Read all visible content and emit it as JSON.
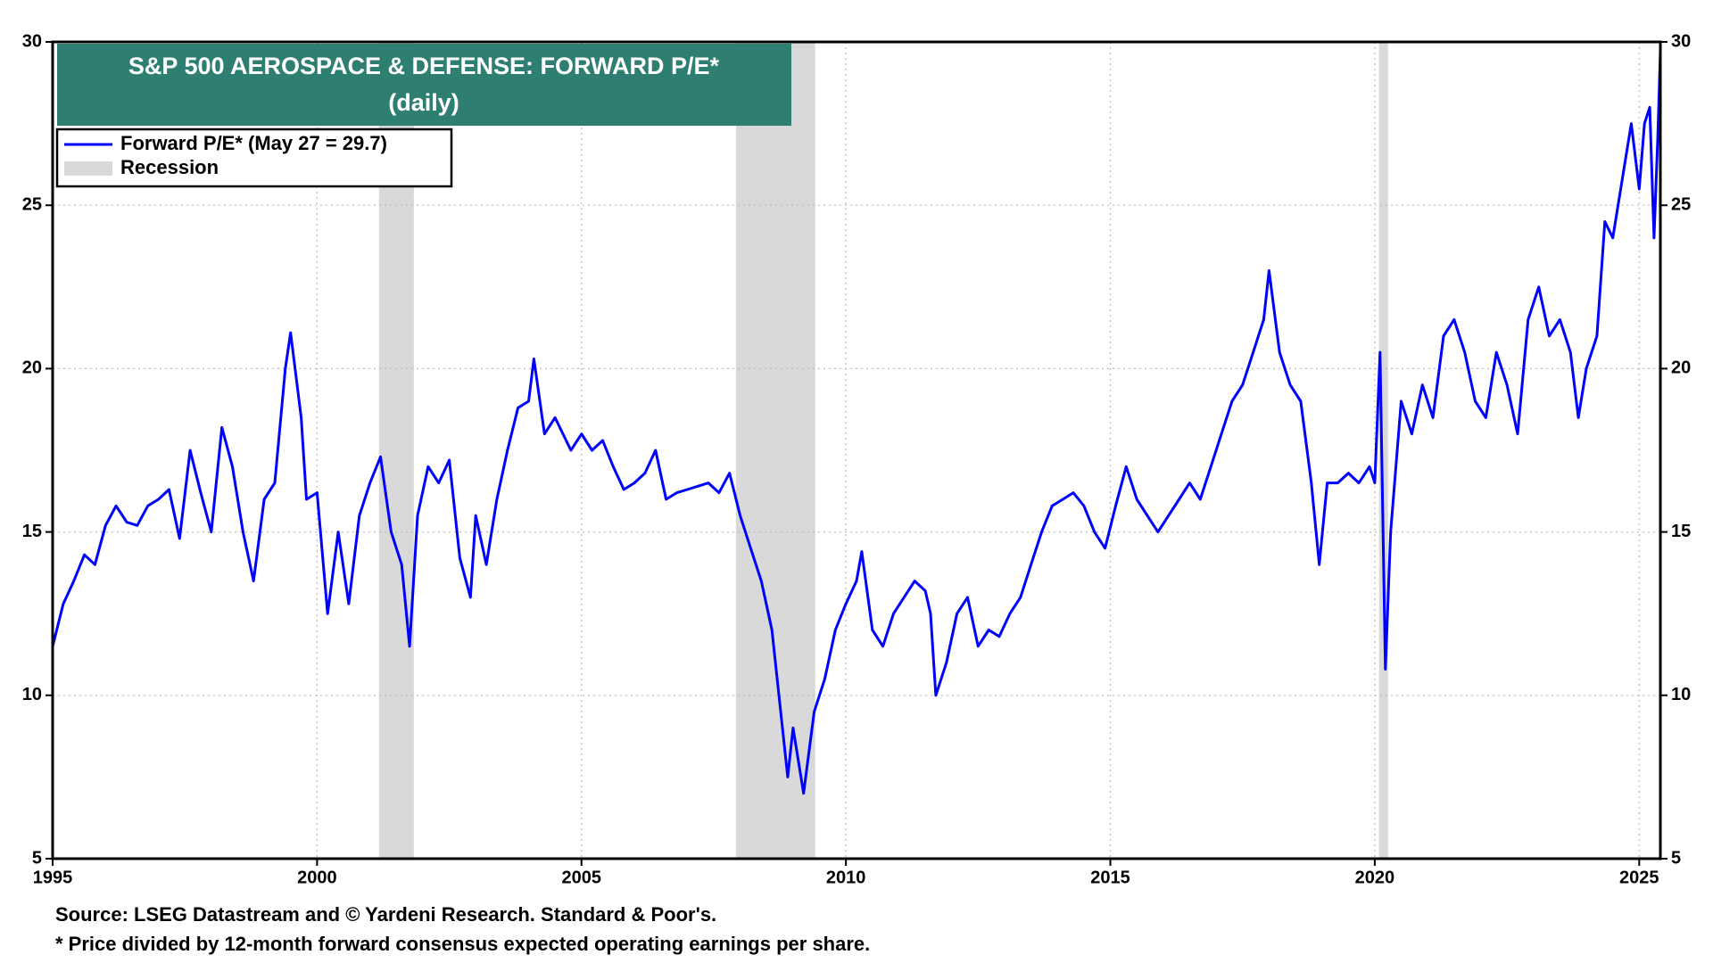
{
  "chart_data": {
    "type": "line",
    "title": "S&P 500 AEROSPACE & DEFENSE: FORWARD P/E*",
    "subtitle": "(daily)",
    "source": "Source: LSEG Datastream and © Yardeni Research. Standard & Poor's.",
    "note": "* Price divided by 12-month forward consensus expected operating earnings per share.",
    "recession_label": "Recession",
    "recession_color": "#d9d9d9",
    "recessions": [
      [
        2001.17,
        2001.83
      ],
      [
        2007.92,
        2009.42
      ],
      [
        2020.08,
        2020.25
      ]
    ],
    "x": [
      1995.0,
      1995.2,
      1995.4,
      1995.6,
      1995.8,
      1996.0,
      1996.2,
      1996.4,
      1996.6,
      1996.8,
      1997.0,
      1997.2,
      1997.4,
      1997.6,
      1997.8,
      1998.0,
      1998.2,
      1998.4,
      1998.6,
      1998.8,
      1999.0,
      1999.2,
      1999.4,
      1999.5,
      1999.7,
      1999.8,
      2000.0,
      2000.2,
      2000.4,
      2000.6,
      2000.8,
      2001.0,
      2001.2,
      2001.4,
      2001.6,
      2001.75,
      2001.9,
      2002.1,
      2002.3,
      2002.5,
      2002.7,
      2002.9,
      2003.0,
      2003.2,
      2003.4,
      2003.6,
      2003.8,
      2004.0,
      2004.1,
      2004.3,
      2004.5,
      2004.8,
      2005.0,
      2005.2,
      2005.4,
      2005.6,
      2005.8,
      2006.0,
      2006.2,
      2006.4,
      2006.6,
      2006.8,
      2007.0,
      2007.2,
      2007.4,
      2007.6,
      2007.8,
      2008.0,
      2008.2,
      2008.4,
      2008.6,
      2008.8,
      2008.9,
      2009.0,
      2009.2,
      2009.4,
      2009.6,
      2009.8,
      2010.0,
      2010.2,
      2010.3,
      2010.5,
      2010.7,
      2010.9,
      2011.1,
      2011.3,
      2011.5,
      2011.6,
      2011.7,
      2011.9,
      2012.1,
      2012.3,
      2012.5,
      2012.7,
      2012.9,
      2013.1,
      2013.3,
      2013.5,
      2013.7,
      2013.9,
      2014.1,
      2014.3,
      2014.5,
      2014.7,
      2014.9,
      2015.1,
      2015.3,
      2015.5,
      2015.7,
      2015.9,
      2016.1,
      2016.3,
      2016.5,
      2016.7,
      2016.9,
      2017.1,
      2017.3,
      2017.5,
      2017.7,
      2017.9,
      2018.0,
      2018.2,
      2018.4,
      2018.6,
      2018.8,
      2018.95,
      2019.1,
      2019.3,
      2019.5,
      2019.7,
      2019.9,
      2020.0,
      2020.1,
      2020.2,
      2020.3,
      2020.5,
      2020.7,
      2020.9,
      2021.1,
      2021.3,
      2021.5,
      2021.7,
      2021.9,
      2022.1,
      2022.3,
      2022.5,
      2022.7,
      2022.9,
      2023.1,
      2023.3,
      2023.5,
      2023.7,
      2023.85,
      2024.0,
      2024.2,
      2024.35,
      2024.5,
      2024.7,
      2024.85,
      2025.0,
      2025.1,
      2025.2,
      2025.28,
      2025.35,
      2025.4
    ],
    "series": [
      {
        "name": "Forward P/E* (May 27 = 29.7)",
        "color": "#0000ff",
        "values": [
          11.5,
          12.8,
          13.5,
          14.3,
          14.0,
          15.2,
          15.8,
          15.3,
          15.2,
          15.8,
          16.0,
          16.3,
          14.8,
          17.5,
          16.2,
          15.0,
          18.2,
          17.0,
          15.0,
          13.5,
          16.0,
          16.5,
          20.0,
          21.1,
          18.5,
          16.0,
          16.2,
          12.5,
          15.0,
          12.8,
          15.5,
          16.5,
          17.3,
          15.0,
          14.0,
          11.5,
          15.5,
          17.0,
          16.5,
          17.2,
          14.2,
          13.0,
          15.5,
          14.0,
          16.0,
          17.5,
          18.8,
          19.0,
          20.3,
          18.0,
          18.5,
          17.5,
          18.0,
          17.5,
          17.8,
          17.0,
          16.3,
          16.5,
          16.8,
          17.5,
          16.0,
          16.2,
          16.3,
          16.4,
          16.5,
          16.2,
          16.8,
          15.5,
          14.5,
          13.5,
          12.0,
          9.0,
          7.5,
          9.0,
          7.0,
          9.5,
          10.5,
          12.0,
          12.8,
          13.5,
          14.4,
          12.0,
          11.5,
          12.5,
          13.0,
          13.5,
          13.2,
          12.5,
          10.0,
          11.0,
          12.5,
          13.0,
          11.5,
          12.0,
          11.8,
          12.5,
          13.0,
          14.0,
          15.0,
          15.8,
          16.0,
          16.2,
          15.8,
          15.0,
          14.5,
          15.8,
          17.0,
          16.0,
          15.5,
          15.0,
          15.5,
          16.0,
          16.5,
          16.0,
          17.0,
          18.0,
          19.0,
          19.5,
          20.5,
          21.5,
          23.0,
          20.5,
          19.5,
          19.0,
          16.5,
          14.0,
          16.5,
          16.5,
          16.8,
          16.5,
          17.0,
          16.5,
          20.5,
          10.8,
          15.0,
          19.0,
          18.0,
          19.5,
          18.5,
          21.0,
          21.5,
          20.5,
          19.0,
          18.5,
          20.5,
          19.5,
          18.0,
          21.5,
          22.5,
          21.0,
          21.5,
          20.5,
          18.5,
          20.0,
          21.0,
          24.5,
          24.0,
          26.0,
          27.5,
          25.5,
          27.5,
          28.0,
          24.0,
          27.0,
          29.7
        ]
      }
    ],
    "xlim": [
      1995,
      2025.4
    ],
    "xticks": [
      1995,
      2000,
      2005,
      2010,
      2015,
      2020,
      2025
    ],
    "ylim": [
      5,
      30
    ],
    "yticks": [
      5,
      10,
      15,
      20,
      25,
      30
    ],
    "y2lim": [
      5,
      30
    ],
    "y2ticks": [
      5,
      10,
      15,
      20,
      25,
      30
    ],
    "grid": true,
    "title_color": "#2e7f71"
  }
}
